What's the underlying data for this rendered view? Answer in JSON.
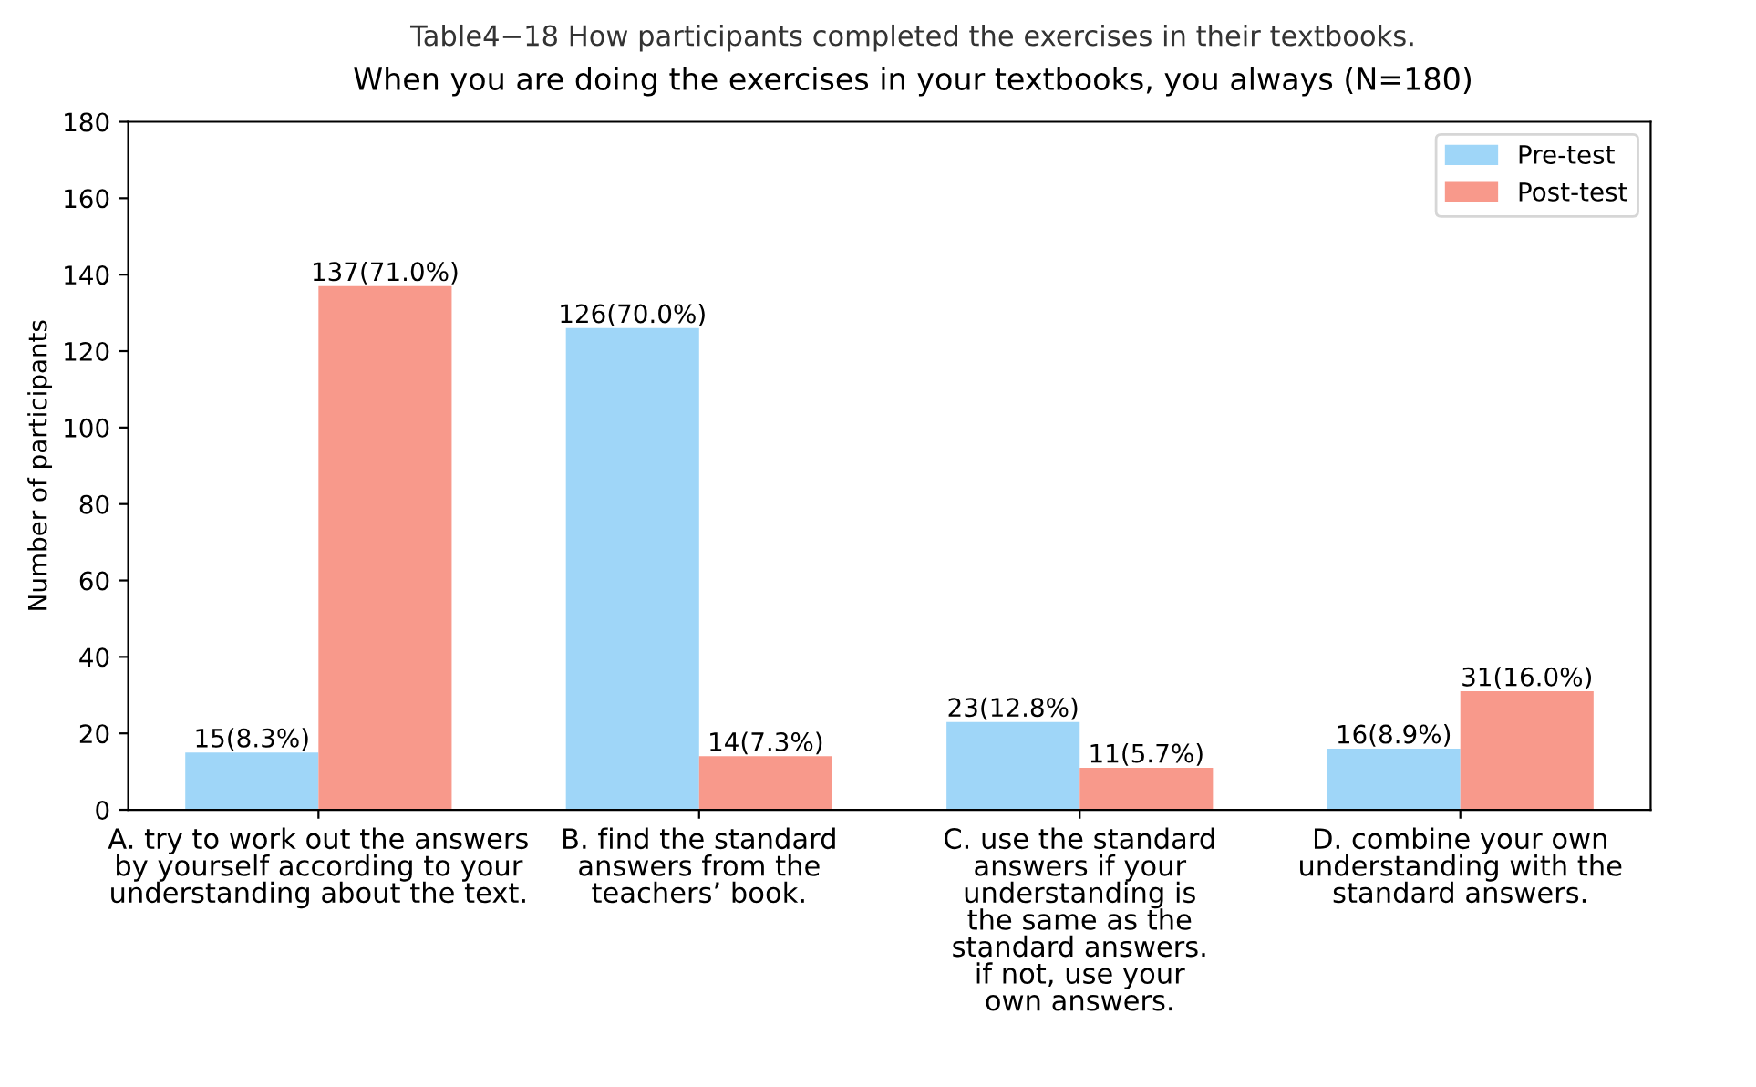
{
  "chart_data": {
    "type": "bar",
    "title": "Table4−18 How participants completed the exercises in their textbooks.",
    "subtitle": "When you are doing the exercises in your textbooks, you always (N=180)",
    "ylabel": "Number of participants",
    "categories": [
      "A. try to work out the answers\nby yourself according to your\nunderstanding about the text.",
      "B. find the standard\nanswers from the\nteachers’ book.",
      "C. use the standard\nanswers if your\nunderstanding is\nthe same as the\nstandard answers.\nif not, use your\nown answers.",
      "D. combine your own\nunderstanding with the\nstandard answers."
    ],
    "series": [
      {
        "name": "Pre-test",
        "color": "#9fd6f8",
        "values": [
          15,
          126,
          23,
          16
        ],
        "value_labels": [
          "15(8.3%)",
          "126(70.0%)",
          "23(12.8%)",
          "16(8.9%)"
        ]
      },
      {
        "name": "Post-test",
        "color": "#f8998b",
        "values": [
          137,
          14,
          11,
          31
        ],
        "value_labels": [
          "137(71.0%)",
          "14(7.3%)",
          "11(5.7%)",
          "31(16.0%)"
        ]
      }
    ],
    "ylim": [
      0,
      180
    ],
    "yticks": [
      0,
      20,
      40,
      60,
      80,
      100,
      120,
      140,
      160,
      180
    ],
    "grid": false,
    "legend": "top right"
  }
}
